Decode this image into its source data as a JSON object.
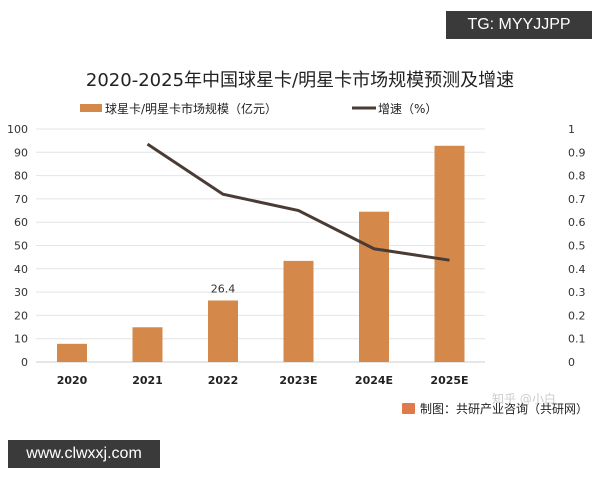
{
  "watermark_top": "TG: MYYJJPP",
  "watermark_bottom": "www.clwxxj.com",
  "zhihu_mark": "知乎 @小白",
  "source": "制图：共研产业咨询（共研网）",
  "chart_data": {
    "type": "bar+line",
    "title": "2020-2025年中国球星卡/明星卡市场规模预测及增速",
    "categories": [
      "2020",
      "2021",
      "2022",
      "2023E",
      "2024E",
      "2025E"
    ],
    "series": [
      {
        "name": "球星卡/明星卡市场规模（亿元）",
        "type": "bar",
        "axis": "left",
        "color": "#d4894a",
        "values": [
          7.8,
          14.9,
          26.4,
          43.4,
          64.5,
          92.8
        ]
      },
      {
        "name": "增速（%）",
        "type": "line",
        "axis": "right",
        "color": "#4a3c34",
        "values": [
          null,
          0.935,
          0.72,
          0.65,
          0.486,
          0.437
        ]
      }
    ],
    "data_labels": [
      {
        "category": "2022",
        "text": "26.4"
      }
    ],
    "left_axis": {
      "ylim": [
        0,
        100
      ],
      "ticks": [
        "0",
        "10",
        "20",
        "30",
        "40",
        "50",
        "60",
        "70",
        "80",
        "90",
        "100"
      ]
    },
    "right_axis": {
      "ylim": [
        0,
        1
      ],
      "ticks": [
        "0",
        "0.1",
        "0.2",
        "0.3",
        "0.4",
        "0.5",
        "0.6",
        "0.7",
        "0.8",
        "0.9",
        "1"
      ]
    },
    "grid": true,
    "legend": "top"
  }
}
